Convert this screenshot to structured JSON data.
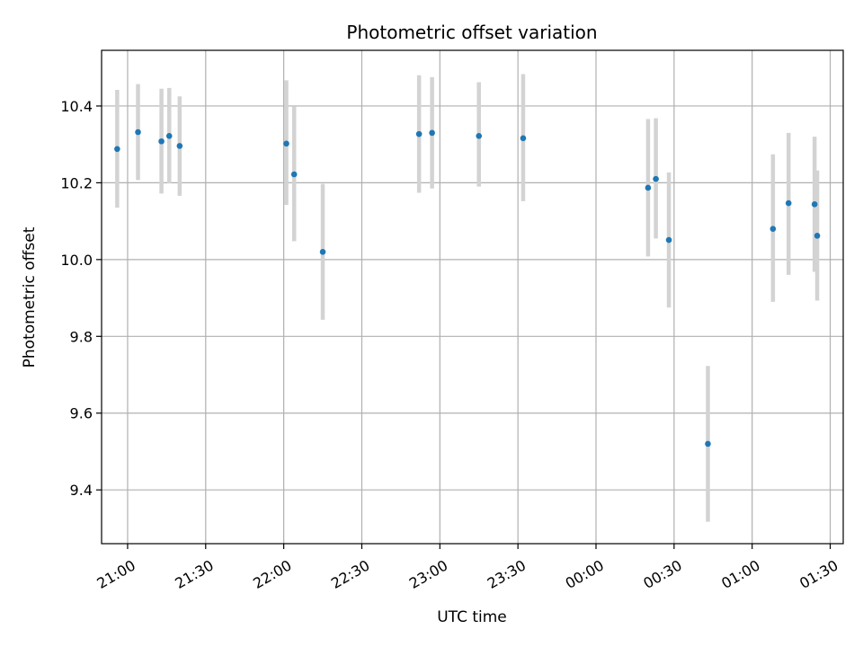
{
  "chart_data": {
    "type": "scatter",
    "title": "Photometric offset variation",
    "xlabel": "UTC time",
    "ylabel": "Photometric offset",
    "x_axis": "time (UTC)",
    "xlim": [
      "20:50",
      "01:35"
    ],
    "ylim": [
      9.26,
      10.545
    ],
    "grid": true,
    "x_tick_labels": [
      "21:00",
      "21:30",
      "22:00",
      "22:30",
      "23:00",
      "23:30",
      "00:00",
      "00:30",
      "01:00",
      "01:30"
    ],
    "y_tick_labels": [
      "9.4",
      "9.6",
      "9.8",
      "10.0",
      "10.2",
      "10.4"
    ],
    "colors": {
      "marker": "#1f77b4",
      "errorbar": "#d3d3d3",
      "grid": "#b0b0b0"
    },
    "points": [
      {
        "x": "20:56",
        "y": 10.288,
        "lo": 10.135,
        "hi": 10.442
      },
      {
        "x": "21:04",
        "y": 10.332,
        "lo": 10.207,
        "hi": 10.457
      },
      {
        "x": "21:13",
        "y": 10.308,
        "lo": 10.172,
        "hi": 10.445
      },
      {
        "x": "21:16",
        "y": 10.322,
        "lo": 10.198,
        "hi": 10.447
      },
      {
        "x": "21:20",
        "y": 10.296,
        "lo": 10.166,
        "hi": 10.425
      },
      {
        "x": "22:01",
        "y": 10.302,
        "lo": 10.142,
        "hi": 10.467
      },
      {
        "x": "22:04",
        "y": 10.222,
        "lo": 10.048,
        "hi": 10.398
      },
      {
        "x": "22:15",
        "y": 10.02,
        "lo": 9.843,
        "hi": 10.197
      },
      {
        "x": "22:52",
        "y": 10.327,
        "lo": 10.174,
        "hi": 10.48
      },
      {
        "x": "22:57",
        "y": 10.33,
        "lo": 10.185,
        "hi": 10.475
      },
      {
        "x": "23:15",
        "y": 10.322,
        "lo": 10.19,
        "hi": 10.462
      },
      {
        "x": "23:32",
        "y": 10.316,
        "lo": 10.152,
        "hi": 10.483
      },
      {
        "x": "00:20",
        "y": 10.187,
        "lo": 10.008,
        "hi": 10.366
      },
      {
        "x": "00:23",
        "y": 10.21,
        "lo": 10.055,
        "hi": 10.368
      },
      {
        "x": "00:28",
        "y": 10.051,
        "lo": 9.875,
        "hi": 10.227
      },
      {
        "x": "00:43",
        "y": 9.52,
        "lo": 9.317,
        "hi": 9.723
      },
      {
        "x": "01:08",
        "y": 10.08,
        "lo": 9.89,
        "hi": 10.274
      },
      {
        "x": "01:14",
        "y": 10.147,
        "lo": 9.96,
        "hi": 10.33
      },
      {
        "x": "01:24",
        "y": 10.144,
        "lo": 9.968,
        "hi": 10.32
      },
      {
        "x": "01:25",
        "y": 10.062,
        "lo": 9.893,
        "hi": 10.232
      }
    ]
  }
}
